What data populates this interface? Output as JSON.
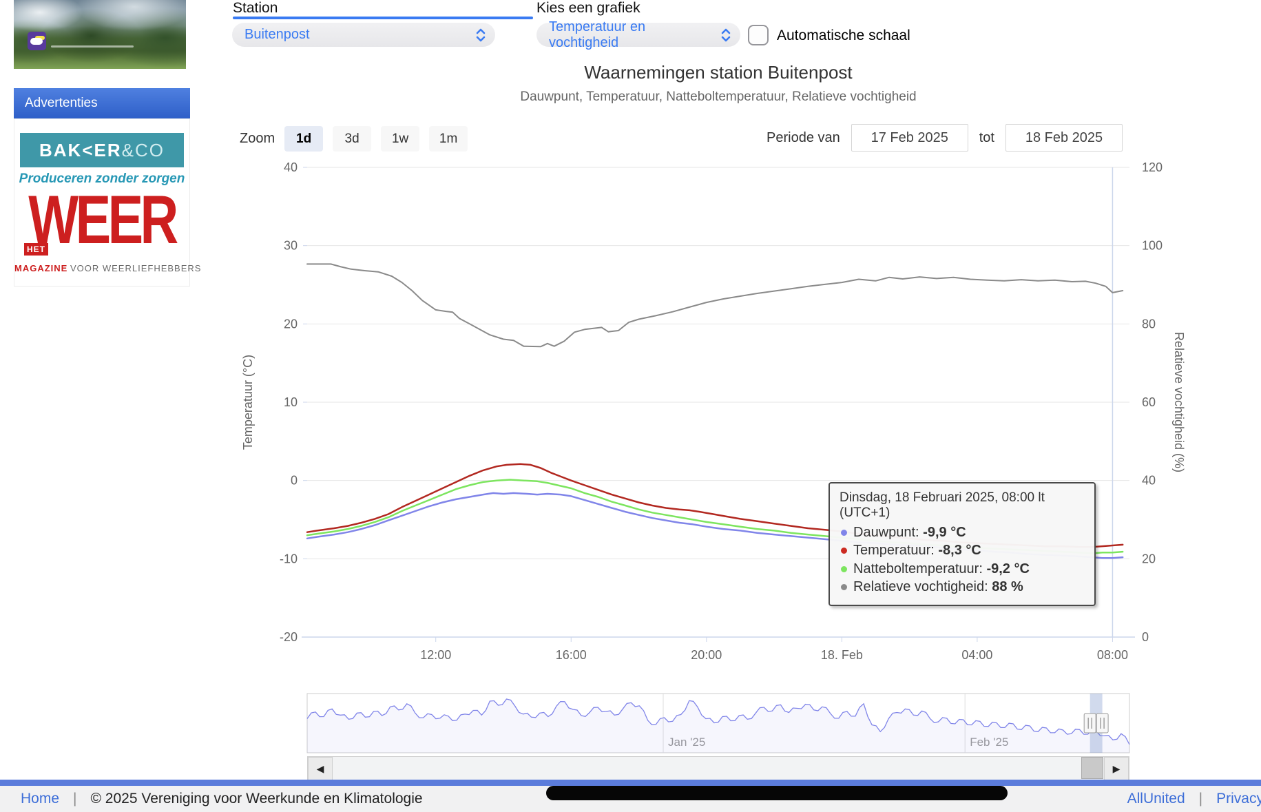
{
  "sidebar": {
    "advertenties_label": "Advertenties",
    "ad_bakker": {
      "brand": "BAK<ER",
      "brand_suffix": "&CO",
      "tagline": "Produceren zonder zorgen"
    },
    "ad_weer": {
      "word": "WEER",
      "badge": "HET",
      "magazine": "MAGAZINE",
      "audience": "VOOR WEERLIEFHEBBERS"
    }
  },
  "controls": {
    "station_label": "Station",
    "station_value": "Buitenpost",
    "graph_label": "Kies een grafiek",
    "graph_value": "Temperatuur en vochtigheid",
    "auto_scale_label": "Automatische schaal",
    "zoom_label": "Zoom",
    "zoom_options": [
      "1d",
      "3d",
      "1w",
      "1m"
    ],
    "zoom_selected": "1d",
    "period_from_label": "Periode van",
    "period_from_value": "17 Feb 2025",
    "period_to_label": "tot",
    "period_to_value": "18 Feb 2025"
  },
  "chart": {
    "title": "Waarnemingen station Buitenpost",
    "subtitle": "Dauwpunt, Temperatuur, Natteboltemperatuur, Relatieve vochtigheid"
  },
  "chart_data": {
    "type": "line",
    "title": "Waarnemingen station Buitenpost",
    "subtitle": "Dauwpunt, Temperatuur, Natteboltemperatuur, Relatieve vochtigheid",
    "x_unit": "hours since 17 Feb 2025 00:00 local time (24 = 18 Feb 00:00)",
    "x_range": [
      8.2,
      32.5
    ],
    "x_ticks": [
      {
        "hour": 12,
        "label": "12:00"
      },
      {
        "hour": 16,
        "label": "16:00"
      },
      {
        "hour": 20,
        "label": "20:00"
      },
      {
        "hour": 24,
        "label": "18. Feb"
      },
      {
        "hour": 28,
        "label": "04:00"
      },
      {
        "hour": 32,
        "label": "08:00"
      }
    ],
    "yaxis_left": {
      "title": "Temperatuur (°C)",
      "range": [
        -20,
        40
      ],
      "ticks": [
        40,
        30,
        20,
        10,
        0,
        -10,
        -20
      ],
      "grid": true
    },
    "yaxis_right": {
      "title": "Relatieve vochtigheid (%)",
      "range": [
        0,
        120
      ],
      "ticks": [
        120,
        100,
        80,
        60,
        40,
        20,
        0
      ],
      "grid": false
    },
    "crosshair_hour": 32,
    "series": [
      {
        "name": "Relatieve vochtigheid",
        "axis": "right",
        "color": "#8a8a8a",
        "width": 2,
        "points": [
          [
            8.2,
            95.3
          ],
          [
            8.9,
            95.3
          ],
          [
            9.2,
            94.6
          ],
          [
            9.5,
            94.0
          ],
          [
            9.9,
            93.6
          ],
          [
            10.3,
            93.3
          ],
          [
            10.7,
            92.2
          ],
          [
            11.0,
            90.6
          ],
          [
            11.3,
            88.5
          ],
          [
            11.6,
            86.0
          ],
          [
            12.0,
            83.6
          ],
          [
            12.3,
            83.2
          ],
          [
            12.5,
            83.0
          ],
          [
            12.7,
            81.4
          ],
          [
            13.0,
            80.0
          ],
          [
            13.3,
            78.6
          ],
          [
            13.6,
            77.2
          ],
          [
            14.0,
            76.1
          ],
          [
            14.3,
            75.8
          ],
          [
            14.6,
            74.3
          ],
          [
            15.1,
            74.2
          ],
          [
            15.3,
            75.0
          ],
          [
            15.5,
            74.3
          ],
          [
            15.8,
            75.6
          ],
          [
            16.1,
            77.9
          ],
          [
            16.4,
            78.6
          ],
          [
            16.9,
            79.1
          ],
          [
            17.1,
            78.0
          ],
          [
            17.4,
            78.3
          ],
          [
            17.7,
            80.4
          ],
          [
            18.0,
            81.2
          ],
          [
            18.5,
            82.1
          ],
          [
            19.0,
            83.1
          ],
          [
            19.5,
            84.3
          ],
          [
            20.0,
            85.5
          ],
          [
            20.5,
            86.4
          ],
          [
            21.0,
            87.1
          ],
          [
            21.5,
            87.8
          ],
          [
            22.0,
            88.4
          ],
          [
            22.5,
            89.0
          ],
          [
            23.0,
            89.6
          ],
          [
            23.5,
            90.1
          ],
          [
            24.0,
            90.6
          ],
          [
            24.5,
            91.4
          ],
          [
            25.0,
            91.0
          ],
          [
            25.4,
            91.9
          ],
          [
            25.8,
            91.5
          ],
          [
            26.3,
            92.0
          ],
          [
            26.8,
            91.6
          ],
          [
            27.3,
            91.9
          ],
          [
            27.8,
            91.4
          ],
          [
            28.3,
            91.2
          ],
          [
            28.8,
            91.0
          ],
          [
            29.3,
            91.3
          ],
          [
            29.8,
            91.0
          ],
          [
            30.3,
            91.2
          ],
          [
            30.8,
            90.8
          ],
          [
            31.2,
            90.9
          ],
          [
            31.5,
            90.4
          ],
          [
            31.8,
            89.6
          ],
          [
            32.0,
            88.0
          ],
          [
            32.3,
            88.5
          ]
        ]
      },
      {
        "name": "Dauwpunt",
        "axis": "left",
        "color": "#8085e9",
        "width": 2.5,
        "points": [
          [
            8.2,
            -7.4
          ],
          [
            8.5,
            -7.2
          ],
          [
            9.0,
            -6.9
          ],
          [
            9.4,
            -6.6
          ],
          [
            9.8,
            -6.2
          ],
          [
            10.2,
            -5.7
          ],
          [
            10.6,
            -5.1
          ],
          [
            11.0,
            -4.5
          ],
          [
            11.4,
            -3.9
          ],
          [
            11.8,
            -3.3
          ],
          [
            12.2,
            -2.8
          ],
          [
            12.6,
            -2.4
          ],
          [
            13.0,
            -2.1
          ],
          [
            13.4,
            -1.8
          ],
          [
            13.7,
            -1.6
          ],
          [
            14.0,
            -1.7
          ],
          [
            14.3,
            -1.6
          ],
          [
            14.7,
            -1.7
          ],
          [
            15.0,
            -1.8
          ],
          [
            15.3,
            -1.7
          ],
          [
            15.7,
            -1.8
          ],
          [
            16.0,
            -2.0
          ],
          [
            16.4,
            -2.5
          ],
          [
            16.8,
            -3.0
          ],
          [
            17.2,
            -3.5
          ],
          [
            17.6,
            -4.0
          ],
          [
            18.0,
            -4.4
          ],
          [
            18.4,
            -4.8
          ],
          [
            18.8,
            -5.1
          ],
          [
            19.2,
            -5.4
          ],
          [
            19.6,
            -5.6
          ],
          [
            20.0,
            -5.9
          ],
          [
            20.5,
            -6.2
          ],
          [
            21.0,
            -6.4
          ],
          [
            21.5,
            -6.7
          ],
          [
            22.0,
            -6.9
          ],
          [
            22.5,
            -7.1
          ],
          [
            23.0,
            -7.3
          ],
          [
            23.5,
            -7.5
          ],
          [
            24.0,
            -7.7
          ],
          [
            24.5,
            -7.9
          ],
          [
            25.0,
            -8.0
          ],
          [
            25.5,
            -8.2
          ],
          [
            26.0,
            -8.3
          ],
          [
            26.4,
            -8.3
          ],
          [
            26.7,
            -8.5
          ],
          [
            27.0,
            -8.6
          ],
          [
            27.5,
            -8.8
          ],
          [
            28.0,
            -8.9
          ],
          [
            28.5,
            -9.1
          ],
          [
            29.0,
            -9.2
          ],
          [
            29.5,
            -9.4
          ],
          [
            30.0,
            -9.5
          ],
          [
            30.5,
            -9.6
          ],
          [
            31.0,
            -9.7
          ],
          [
            31.4,
            -9.8
          ],
          [
            31.7,
            -9.9
          ],
          [
            32.0,
            -9.9
          ],
          [
            32.3,
            -9.8
          ]
        ]
      },
      {
        "name": "Natteboltemperatuur",
        "axis": "left",
        "color": "#7de55f",
        "width": 2.5,
        "points": [
          [
            8.2,
            -7.0
          ],
          [
            8.5,
            -6.8
          ],
          [
            9.0,
            -6.5
          ],
          [
            9.4,
            -6.2
          ],
          [
            9.8,
            -5.8
          ],
          [
            10.2,
            -5.3
          ],
          [
            10.6,
            -4.7
          ],
          [
            11.0,
            -3.9
          ],
          [
            11.4,
            -3.2
          ],
          [
            11.8,
            -2.5
          ],
          [
            12.2,
            -1.8
          ],
          [
            12.6,
            -1.1
          ],
          [
            13.0,
            -0.6
          ],
          [
            13.4,
            -0.2
          ],
          [
            13.8,
            0.0
          ],
          [
            14.2,
            0.1
          ],
          [
            14.6,
            0.0
          ],
          [
            15.0,
            -0.1
          ],
          [
            15.3,
            -0.3
          ],
          [
            15.7,
            -0.7
          ],
          [
            16.0,
            -1.0
          ],
          [
            16.4,
            -1.6
          ],
          [
            16.8,
            -2.1
          ],
          [
            17.2,
            -2.7
          ],
          [
            17.6,
            -3.2
          ],
          [
            18.0,
            -3.7
          ],
          [
            18.4,
            -4.1
          ],
          [
            18.8,
            -4.4
          ],
          [
            19.2,
            -4.7
          ],
          [
            19.6,
            -5.0
          ],
          [
            20.0,
            -5.3
          ],
          [
            20.5,
            -5.6
          ],
          [
            21.0,
            -5.9
          ],
          [
            21.5,
            -6.2
          ],
          [
            22.0,
            -6.4
          ],
          [
            22.5,
            -6.7
          ],
          [
            23.0,
            -6.9
          ],
          [
            23.5,
            -7.1
          ],
          [
            24.0,
            -7.3
          ],
          [
            24.5,
            -7.5
          ],
          [
            25.0,
            -7.7
          ],
          [
            25.5,
            -7.9
          ],
          [
            26.0,
            -8.0
          ],
          [
            26.5,
            -8.2
          ],
          [
            27.0,
            -8.3
          ],
          [
            27.5,
            -8.5
          ],
          [
            28.0,
            -8.6
          ],
          [
            28.5,
            -8.7
          ],
          [
            29.0,
            -8.8
          ],
          [
            29.5,
            -8.9
          ],
          [
            30.0,
            -9.0
          ],
          [
            30.5,
            -9.1
          ],
          [
            31.0,
            -9.2
          ],
          [
            31.4,
            -9.3
          ],
          [
            31.7,
            -9.2
          ],
          [
            32.0,
            -9.2
          ],
          [
            32.3,
            -9.1
          ]
        ]
      },
      {
        "name": "Temperatuur",
        "axis": "left",
        "color": "#b22820",
        "width": 2.5,
        "points": [
          [
            8.2,
            -6.6
          ],
          [
            8.5,
            -6.4
          ],
          [
            9.0,
            -6.1
          ],
          [
            9.4,
            -5.8
          ],
          [
            9.8,
            -5.4
          ],
          [
            10.2,
            -4.9
          ],
          [
            10.6,
            -4.3
          ],
          [
            11.0,
            -3.4
          ],
          [
            11.4,
            -2.6
          ],
          [
            11.8,
            -1.8
          ],
          [
            12.2,
            -1.0
          ],
          [
            12.6,
            -0.2
          ],
          [
            13.0,
            0.6
          ],
          [
            13.4,
            1.3
          ],
          [
            13.8,
            1.8
          ],
          [
            14.1,
            2.0
          ],
          [
            14.5,
            2.1
          ],
          [
            14.8,
            2.0
          ],
          [
            15.1,
            1.6
          ],
          [
            15.4,
            1.0
          ],
          [
            15.7,
            0.5
          ],
          [
            16.0,
            0.0
          ],
          [
            16.4,
            -0.6
          ],
          [
            16.8,
            -1.2
          ],
          [
            17.2,
            -1.8
          ],
          [
            17.6,
            -2.3
          ],
          [
            18.0,
            -2.8
          ],
          [
            18.4,
            -3.2
          ],
          [
            18.8,
            -3.5
          ],
          [
            19.2,
            -3.7
          ],
          [
            19.5,
            -3.8
          ],
          [
            19.8,
            -4.0
          ],
          [
            20.2,
            -4.3
          ],
          [
            20.6,
            -4.6
          ],
          [
            21.0,
            -4.9
          ],
          [
            21.5,
            -5.2
          ],
          [
            22.0,
            -5.5
          ],
          [
            22.5,
            -5.8
          ],
          [
            23.0,
            -6.1
          ],
          [
            23.5,
            -6.3
          ],
          [
            24.0,
            -6.5
          ],
          [
            24.5,
            -6.8
          ],
          [
            25.0,
            -7.0
          ],
          [
            25.5,
            -7.2
          ],
          [
            26.0,
            -7.4
          ],
          [
            26.5,
            -7.6
          ],
          [
            27.0,
            -7.7
          ],
          [
            27.5,
            -7.9
          ],
          [
            28.0,
            -8.0
          ],
          [
            28.5,
            -8.1
          ],
          [
            29.0,
            -8.2
          ],
          [
            29.5,
            -8.3
          ],
          [
            30.0,
            -8.4
          ],
          [
            30.5,
            -8.4
          ],
          [
            31.0,
            -8.5
          ],
          [
            31.4,
            -8.5
          ],
          [
            31.7,
            -8.4
          ],
          [
            32.0,
            -8.3
          ],
          [
            32.3,
            -8.2
          ]
        ]
      }
    ]
  },
  "tooltip": {
    "header": "Dinsdag, 18 Februari 2025, 08:00 lt (UTC+1)",
    "rows": [
      {
        "label": "Dauwpunt",
        "value": "-9,9 °C",
        "color": "#8085e9"
      },
      {
        "label": "Temperatuur",
        "value": "-8,3 °C",
        "color": "#cc2b22"
      },
      {
        "label": "Natteboltemperatuur",
        "value": "-9,2 °C",
        "color": "#7de55f"
      },
      {
        "label": "Relatieve vochtigheid",
        "value": "88 %",
        "color": "#8a8a8a"
      }
    ]
  },
  "navigator": {
    "line_color": "#8085e9",
    "months": [
      {
        "label": "Jan '25",
        "f": 0.433
      },
      {
        "label": "Feb '25",
        "f": 0.8
      }
    ],
    "selected_range_fraction": [
      0.952,
      0.967
    ],
    "values": [
      5.5,
      6.8,
      5.9,
      7.4,
      6.2,
      5.4,
      6.6,
      5.8,
      6.9,
      6.1,
      7.8,
      7.2,
      8.4,
      6.6,
      5.7,
      6.3,
      5.6,
      6.0,
      5.2,
      6.4,
      7.1,
      6.2,
      8.9,
      8.1,
      9.3,
      8.0,
      6.4,
      5.8,
      6.6,
      5.9,
      7.9,
      8.8,
      7.3,
      6.1,
      6.7,
      7.7,
      6.9,
      6.2,
      7.4,
      8.6,
      8.0,
      5.2,
      4.4,
      5.7,
      5.0,
      6.3,
      9.0,
      7.8,
      5.5,
      4.7,
      5.9,
      5.1,
      6.1,
      5.4,
      6.6,
      7.7,
      7.0,
      8.2,
      6.7,
      7.5,
      8.3,
      7.2,
      7.8,
      6.5,
      5.6,
      6.9,
      6.0,
      8.4,
      4.3,
      3.0,
      5.5,
      6.7,
      7.4,
      6.2,
      7.0,
      5.5,
      4.9,
      5.6,
      4.5,
      5.3,
      4.3,
      5.0,
      4.0,
      4.7,
      3.8,
      4.5,
      3.4,
      4.1,
      3.0,
      3.7,
      2.8,
      3.3,
      2.6,
      3.4,
      2.5,
      3.1,
      2.2,
      1.4,
      2.6,
      0.5
    ]
  },
  "footer": {
    "home": "Home",
    "copyright": "© 2025 Vereniging voor Weerkunde en Klimatologie",
    "allunited": "AllUnited",
    "privacy": "Privacy"
  }
}
